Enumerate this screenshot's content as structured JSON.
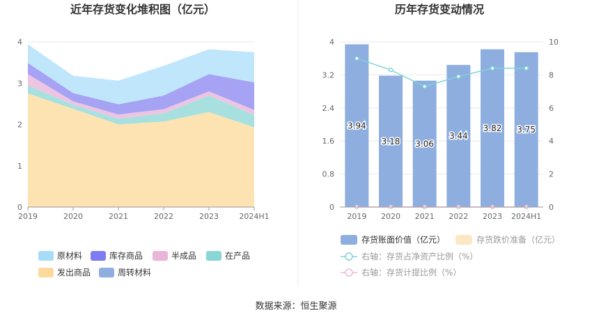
{
  "footer": {
    "source": "数据来源：恒生聚源"
  },
  "chart_data": [
    {
      "type": "area",
      "stacked": true,
      "title": "近年存货变化堆积图（亿元）",
      "categories": [
        "2019",
        "2020",
        "2021",
        "2022",
        "2023",
        "2024H1"
      ],
      "y_ticks": [
        "0",
        "1",
        "2",
        "3",
        "4"
      ],
      "ylim": [
        0,
        4
      ],
      "grid": true,
      "legend_position": "bottom",
      "legend_order": [
        "原材料",
        "库存商品",
        "半成品",
        "在产品",
        "发出商品",
        "周转材料"
      ],
      "series": [
        {
          "name": "发出商品",
          "color": "#fde3b1",
          "values": [
            2.75,
            2.38,
            2.0,
            2.07,
            2.3,
            1.93
          ]
        },
        {
          "name": "在产品",
          "color": "#a8e0e0",
          "values": [
            0.2,
            0.1,
            0.14,
            0.2,
            0.4,
            0.3
          ]
        },
        {
          "name": "半成品",
          "color": "#edc5e2",
          "values": [
            0.27,
            0.08,
            0.1,
            0.1,
            0.1,
            0.12
          ]
        },
        {
          "name": "库存商品",
          "color": "#a6a3f5",
          "values": [
            0.27,
            0.2,
            0.25,
            0.33,
            0.42,
            0.67
          ]
        },
        {
          "name": "原材料",
          "color": "#c0e6fc",
          "values": [
            0.45,
            0.42,
            0.57,
            0.72,
            0.6,
            0.73
          ]
        },
        {
          "name": "周转材料",
          "color": "#8eaee0",
          "values": [
            0.0,
            0.0,
            0.0,
            0.0,
            0.0,
            0.0
          ]
        }
      ],
      "legend_colors": {
        "原材料": "#a7dcf7",
        "库存商品": "#7f7cf2",
        "半成品": "#e9b5d9",
        "在产品": "#8ad6d6",
        "发出商品": "#fcd99c",
        "周转材料": "#8eaee0"
      }
    },
    {
      "type": "bar",
      "title": "历年存货变动情况",
      "categories": [
        "2019",
        "2020",
        "2021",
        "2022",
        "2023",
        "2024H1"
      ],
      "y_ticks_left": [
        "0",
        "0.8",
        "1.6",
        "2.4",
        "3.2",
        "4"
      ],
      "y_ticks_right": [
        "0",
        "2",
        "4",
        "6",
        "8",
        "10"
      ],
      "ylim_left": [
        0,
        4
      ],
      "ylim_right": [
        0,
        10
      ],
      "grid": true,
      "legend_position": "bottom",
      "bar_series": [
        {
          "name": "存货账面价值（亿元）",
          "color": "#8eaee0",
          "values": [
            3.94,
            3.18,
            3.06,
            3.44,
            3.82,
            3.75
          ],
          "labels": [
            "3.94",
            "3.18",
            "3.06",
            "3.44",
            "3.82",
            "3.75"
          ]
        },
        {
          "name": "存货跌价准备（亿元）",
          "color": "#fde7c4",
          "values": [
            0,
            0,
            0,
            0,
            0,
            0
          ]
        }
      ],
      "line_series": [
        {
          "name": "右轴：存货占净资产比例（%）",
          "color": "#7fd3d8",
          "axis": "right",
          "values": [
            9.0,
            8.3,
            7.3,
            7.9,
            8.4,
            8.4
          ]
        },
        {
          "name": "右轴：存货计提比例（%）",
          "color": "#ebbbd9",
          "axis": "right",
          "values": [
            0,
            0,
            0,
            0,
            0,
            0
          ]
        }
      ]
    }
  ]
}
